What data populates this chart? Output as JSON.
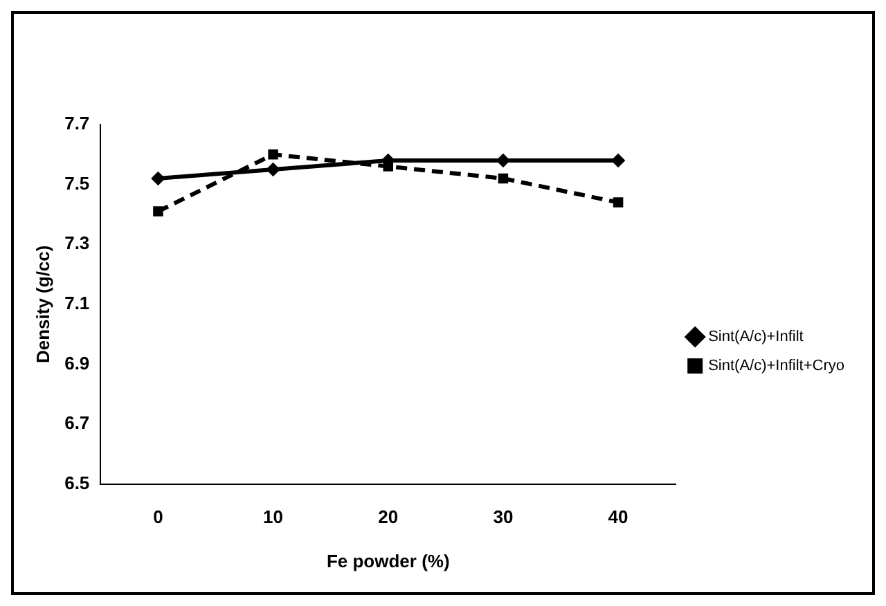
{
  "chart_data": {
    "type": "line",
    "xlabel": "Fe powder (%)",
    "ylabel": "Density (g/cc)",
    "categories": [
      "0",
      "10",
      "20",
      "30",
      "40"
    ],
    "series": [
      {
        "name": "Sint(A/c)+Infilt",
        "color": "#000000",
        "values": [
          7.52,
          7.55,
          7.58,
          7.58,
          7.58
        ],
        "line_style": "solid",
        "marker": "diamond"
      },
      {
        "name": "Sint(A/c)+Infilt+Cryo",
        "color": "#000000",
        "values": [
          7.41,
          7.6,
          7.56,
          7.52,
          7.44
        ],
        "line_style": "dashed",
        "marker": "square"
      }
    ],
    "ylim": [
      6.5,
      7.7
    ],
    "yticks": [
      6.5,
      6.7,
      6.9,
      7.1,
      7.3,
      7.5,
      7.7
    ],
    "grid": false,
    "legend": "right"
  }
}
